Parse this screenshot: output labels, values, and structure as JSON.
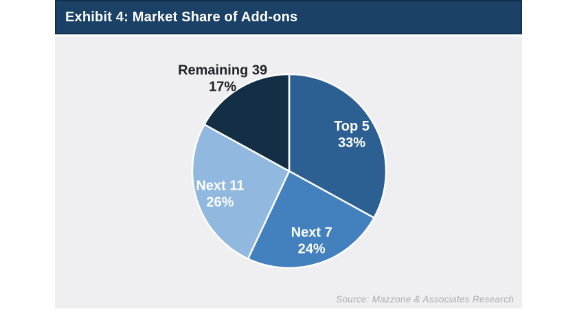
{
  "header": {
    "title": "Exhibit 4: Market Share of Add-ons"
  },
  "source_note": "Source: Mazzone & Associates Research",
  "colors": {
    "page_bg": "#ffffff",
    "header_bg": "#1b4266",
    "header_border": "#12304c",
    "panel_bg": "#efeff1",
    "wedge_stroke": "#ffffff",
    "label_inside": "#ffffff",
    "label_outside": "#1f2127",
    "source_text": "#ababaf"
  },
  "chart_data": {
    "type": "pie",
    "title": "Exhibit 4: Market Share of Add-ons",
    "slices": [
      {
        "label": "Top 5",
        "value": 33,
        "display": "33%",
        "color": "#2c6093",
        "label_inside": true
      },
      {
        "label": "Next 7",
        "value": 24,
        "display": "24%",
        "color": "#4281bd",
        "label_inside": true
      },
      {
        "label": "Next 11",
        "value": 26,
        "display": "26%",
        "color": "#91b8de",
        "label_inside": true
      },
      {
        "label": "Remaining 39",
        "value": 17,
        "display": "17%",
        "color": "#142e45",
        "label_inside": false
      }
    ],
    "start_angle_deg": 0,
    "direction": "clockwise",
    "legend": "none",
    "source": "Source: Mazzone & Associates Research"
  }
}
